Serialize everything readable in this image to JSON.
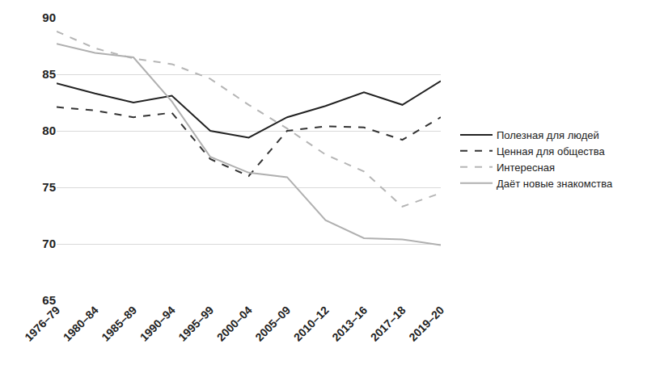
{
  "chart_data": {
    "type": "line",
    "categories": [
      "1976–79",
      "1980–84",
      "1985–89",
      "1990–94",
      "1995–99",
      "2000–04",
      "2005–09",
      "2010–12",
      "2013–16",
      "2017–18",
      "2019–20"
    ],
    "series": [
      {
        "name": "Полезная для людей",
        "color": "#222222",
        "line_style": "solid",
        "values": [
          84.2,
          83.3,
          82.5,
          83.1,
          80.0,
          79.4,
          81.2,
          82.2,
          83.4,
          82.3,
          84.4
        ]
      },
      {
        "name": "Ценная для общества",
        "color": "#333333",
        "line_style": "dash",
        "values": [
          82.1,
          81.8,
          81.2,
          81.6,
          77.5,
          76.0,
          80.0,
          80.4,
          80.3,
          79.2,
          81.2
        ]
      },
      {
        "name": "Интересная",
        "color": "#b5b5b5",
        "line_style": "dash",
        "values": [
          88.8,
          87.3,
          86.4,
          85.9,
          84.6,
          82.3,
          80.2,
          77.9,
          76.4,
          73.3,
          74.5
        ]
      },
      {
        "name": "Даёт новые знакомства",
        "color": "#b0b0b0",
        "line_style": "solid",
        "values": [
          87.7,
          86.9,
          86.5,
          82.6,
          77.7,
          76.3,
          75.9,
          72.1,
          70.5,
          70.4,
          69.9
        ]
      }
    ],
    "ylim": [
      65,
      90
    ],
    "yticks": [
      65,
      70,
      75,
      80,
      85,
      90
    ],
    "grid": true,
    "legend": "right"
  }
}
